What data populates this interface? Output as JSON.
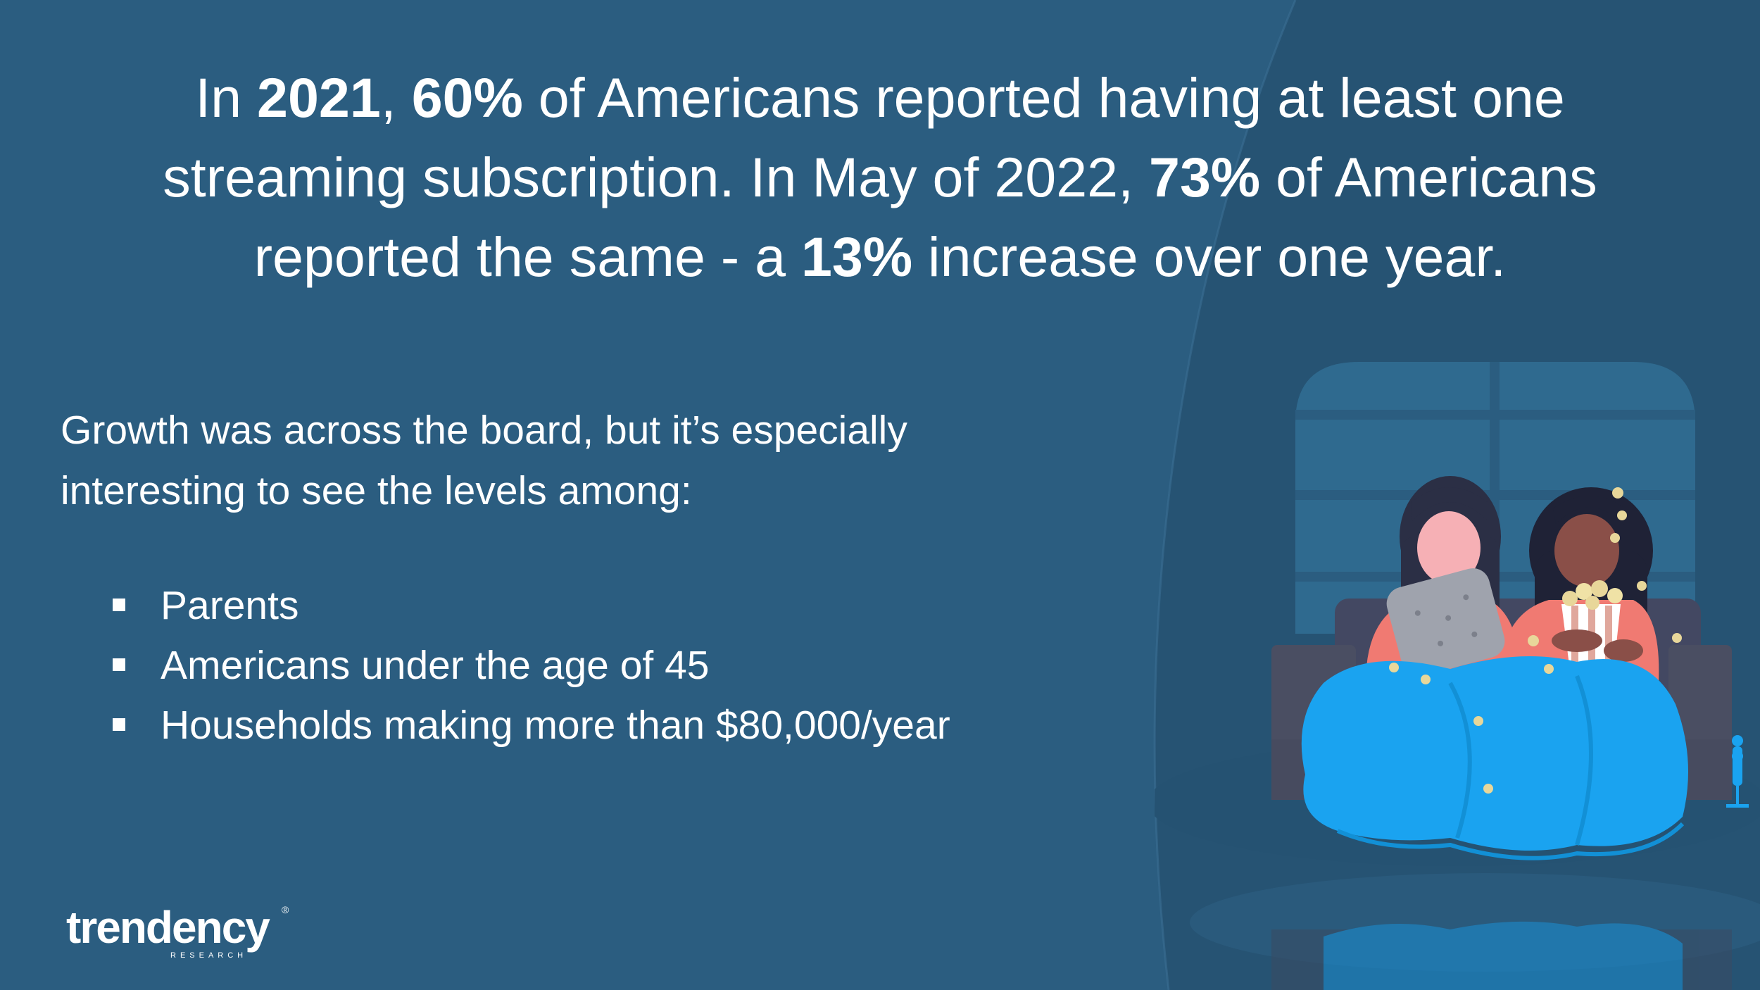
{
  "headline": {
    "line1": {
      "pre": "In ",
      "year": "2021",
      "sep": ", ",
      "pct": "60%",
      "post": " of Americans reported having at least one"
    },
    "line2": {
      "pre": "streaming subscription. In May of 2022, ",
      "pct": "73%",
      "post": " of Americans"
    },
    "line3": {
      "pre": "reported the same - a ",
      "pct": "13%",
      "post": " increase over one year."
    }
  },
  "intro": {
    "line1": "Growth was across the board, but it’s especially",
    "line2": "interesting to see the levels among:"
  },
  "bullets": [
    "Parents",
    "Americans under the age of 45",
    "Households making more than $80,000/year"
  ],
  "logo": {
    "word": "trendency",
    "sub": "RESEARCH",
    "reg": "®"
  },
  "colors": {
    "background": "#2b5d80",
    "curve": "#265373",
    "text": "#ffffff",
    "blanket": "#1aa3f0",
    "shirt": "#f07a72",
    "sofa": "#4a4e62",
    "window": "#2f6a8f"
  },
  "illustration": {
    "icons": [
      "window-icon",
      "sofa-icon",
      "person-with-pillow-icon",
      "person-with-popcorn-icon",
      "blanket-icon",
      "popcorn-icon",
      "lamp-icon"
    ]
  }
}
